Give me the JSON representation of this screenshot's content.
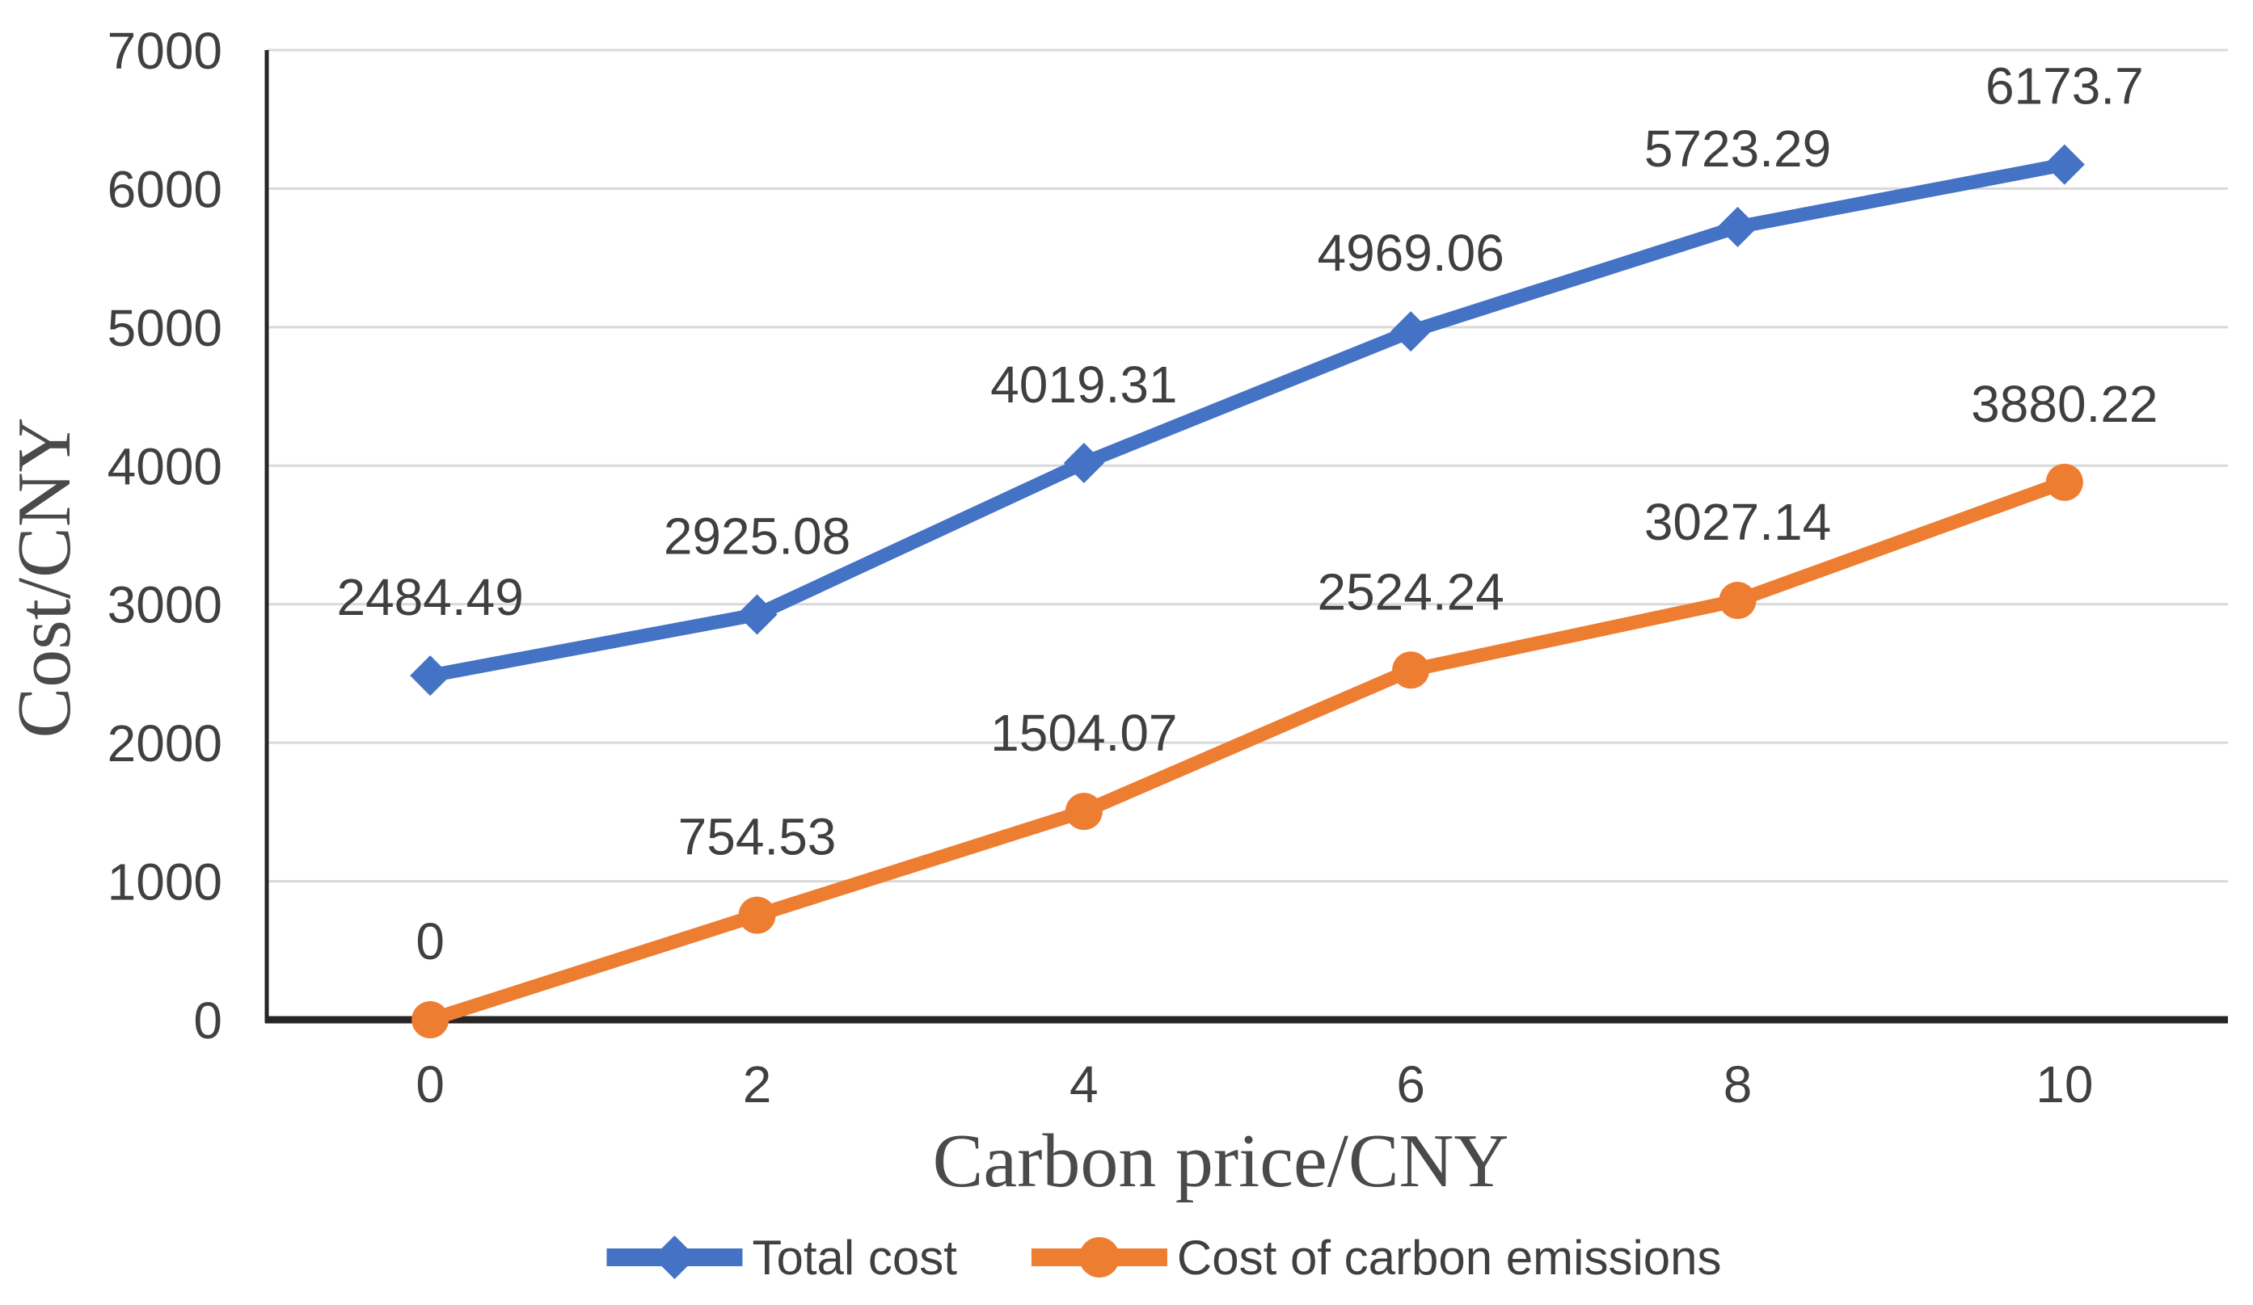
{
  "chart_data": {
    "type": "line",
    "x": [
      0,
      2,
      4,
      6,
      8,
      10
    ],
    "xlabel": "Carbon price/CNY",
    "ylabel": "Cost/CNY",
    "ylim": [
      0,
      7000
    ],
    "ytick_step": 1000,
    "ytick_labels": [
      "0",
      "1000",
      "2000",
      "3000",
      "4000",
      "5000",
      "6000",
      "7000"
    ],
    "xtick_labels": [
      "0",
      "2",
      "4",
      "6",
      "8",
      "10"
    ],
    "grid": true,
    "legend_position": "bottom",
    "series": [
      {
        "name": "Total cost",
        "color": "#4472C4",
        "marker": "diamond",
        "values": [
          2484.49,
          2925.08,
          4019.31,
          4969.06,
          5723.29,
          6173.7
        ],
        "labels": [
          "2484.49",
          "2925.08",
          "4019.31",
          "4969.06",
          "5723.29",
          "6173.7"
        ]
      },
      {
        "name": "Cost of carbon emissions",
        "color": "#ED7D31",
        "marker": "circle",
        "values": [
          0,
          754.53,
          1504.07,
          2524.24,
          3027.14,
          3880.22
        ],
        "labels": [
          "0",
          "754.53",
          "1504.07",
          "2524.24",
          "3027.14",
          "3880.22"
        ]
      }
    ]
  },
  "colors": {
    "axis": "#262626",
    "grid": "#D9D9D9",
    "tick_label": "#404040",
    "data_label": "#3f3f3f",
    "axis_title": "#4a4a4a",
    "legend_label": "#3f3f3f",
    "background": "#ffffff"
  }
}
